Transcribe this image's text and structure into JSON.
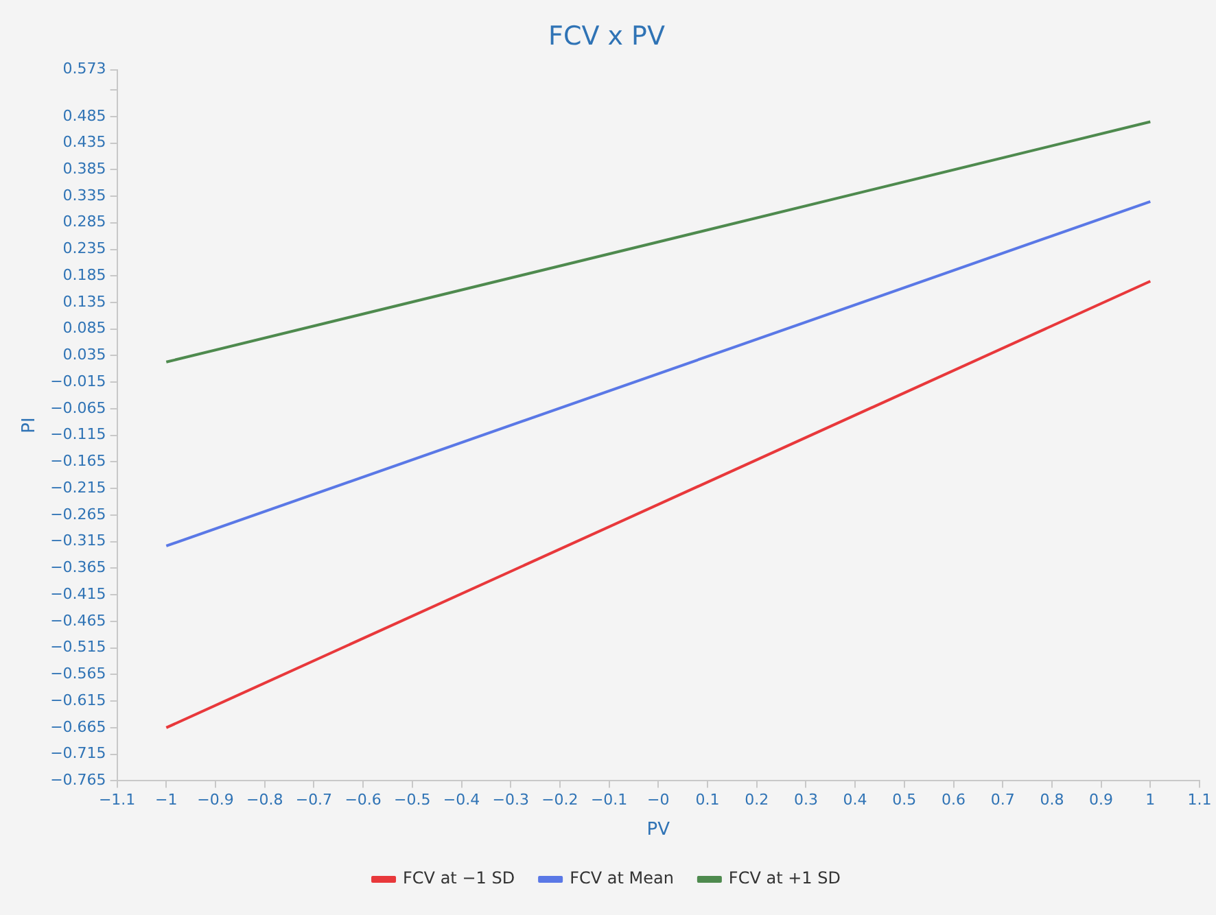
{
  "chart_data": {
    "type": "line",
    "title": "FCV x PV",
    "xlabel": "PV",
    "ylabel": "PI",
    "x": [
      -1,
      1
    ],
    "series": [
      {
        "name": "FCV at −1 SD",
        "color": "#e8383b",
        "values": [
          -0.665,
          0.175
        ]
      },
      {
        "name": "FCV at Mean",
        "color": "#5a78e6",
        "values": [
          -0.323,
          0.325
        ]
      },
      {
        "name": "FCV at +1 SD",
        "color": "#4e8a4e",
        "values": [
          0.023,
          0.475
        ]
      }
    ],
    "xlim": [
      -1.1,
      1.1
    ],
    "xticks": [
      {
        "value": -1.1,
        "label": "−1.1"
      },
      {
        "value": -1,
        "label": "−1"
      },
      {
        "value": -0.9,
        "label": "−0.9"
      },
      {
        "value": -0.8,
        "label": "−0.8"
      },
      {
        "value": -0.7,
        "label": "−0.7"
      },
      {
        "value": -0.6,
        "label": "−0.6"
      },
      {
        "value": -0.5,
        "label": "−0.5"
      },
      {
        "value": -0.4,
        "label": "−0.4"
      },
      {
        "value": -0.3,
        "label": "−0.3"
      },
      {
        "value": -0.2,
        "label": "−0.2"
      },
      {
        "value": -0.1,
        "label": "−0.1"
      },
      {
        "value": 0,
        "label": "−0"
      },
      0.1,
      0.2,
      0.3,
      0.4,
      0.5,
      0.6,
      0.7,
      0.8,
      0.9,
      1,
      1.1
    ],
    "ylim": [
      -0.765,
      0.573
    ],
    "yticks": [
      {
        "value": -0.765,
        "label": "−0.765"
      },
      {
        "value": -0.715,
        "label": "−0.715"
      },
      {
        "value": -0.665,
        "label": "−0.665"
      },
      {
        "value": -0.615,
        "label": "−0.615"
      },
      {
        "value": -0.565,
        "label": "−0.565"
      },
      {
        "value": -0.515,
        "label": "−0.515"
      },
      {
        "value": -0.465,
        "label": "−0.465"
      },
      {
        "value": -0.415,
        "label": "−0.415"
      },
      {
        "value": -0.365,
        "label": "−0.365"
      },
      {
        "value": -0.315,
        "label": "−0.315"
      },
      {
        "value": -0.265,
        "label": "−0.265"
      },
      {
        "value": -0.215,
        "label": "−0.215"
      },
      {
        "value": -0.165,
        "label": "−0.165"
      },
      {
        "value": -0.115,
        "label": "−0.115"
      },
      {
        "value": -0.065,
        "label": "−0.065"
      },
      {
        "value": -0.015,
        "label": "−0.015"
      },
      0.035,
      0.085,
      0.135,
      0.185,
      0.235,
      0.285,
      0.335,
      0.385,
      0.435,
      0.485,
      {
        "value": 0.535,
        "label": null
      },
      0.573
    ],
    "grid": false,
    "legend": "bottom",
    "marker": "none",
    "line_style": "solid"
  }
}
